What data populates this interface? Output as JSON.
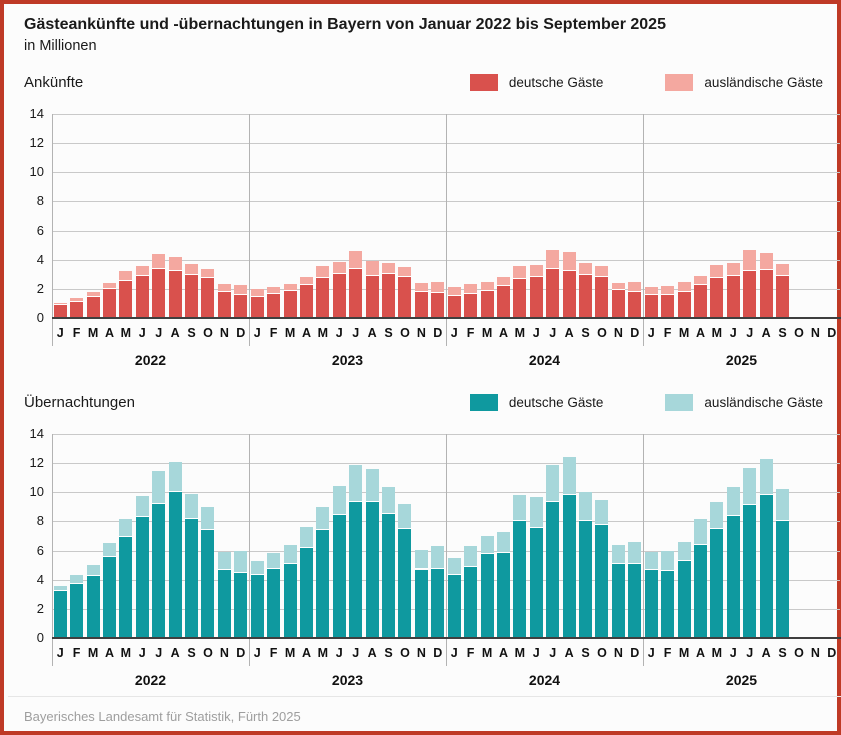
{
  "header": {
    "title": "Gästeankünfte und -übernachtungen in Bayern von Januar 2022 bis September 2025",
    "subtitle": "in Millionen"
  },
  "source": "Bayerisches Landesamt für Statistik, Fürth 2025",
  "frame": {
    "border_color": "#bf3a26",
    "background": "#fcfcfc"
  },
  "chart_data": [
    {
      "type": "bar",
      "stacked": true,
      "title": "Ankünfte",
      "unit": "Millionen",
      "ylim": [
        0,
        14
      ],
      "yticks": [
        0,
        2,
        4,
        6,
        8,
        10,
        12,
        14
      ],
      "grid": true,
      "legend_position": "top-right",
      "month_letters": [
        "J",
        "F",
        "M",
        "A",
        "M",
        "J",
        "J",
        "A",
        "S",
        "O",
        "N",
        "D"
      ],
      "years": [
        "2022",
        "2023",
        "2024",
        "2025"
      ],
      "legend": [
        {
          "label": "deutsche Gäste",
          "color": "#d9514d"
        },
        {
          "label": "ausländische Gäste",
          "color": "#f4a8a0"
        }
      ],
      "series": [
        {
          "name": "deutsche Gäste",
          "color": "#d9514d",
          "values": [
            0.9,
            1.1,
            1.45,
            2.0,
            2.55,
            2.85,
            3.35,
            3.2,
            2.95,
            2.75,
            1.8,
            1.6,
            1.45,
            1.65,
            1.85,
            2.25,
            2.75,
            3.0,
            3.35,
            2.9,
            3.05,
            2.8,
            1.8,
            1.7,
            1.5,
            1.65,
            1.85,
            2.2,
            2.7,
            2.8,
            3.35,
            3.25,
            2.95,
            2.8,
            1.9,
            1.8,
            1.6,
            1.6,
            1.8,
            2.25,
            2.75,
            2.9,
            3.25,
            3.3,
            2.9,
            null,
            null,
            null
          ]
        },
        {
          "name": "ausländische Gäste",
          "color": "#f4a8a0",
          "values": [
            0.1,
            0.25,
            0.35,
            0.4,
            0.65,
            0.7,
            1.05,
            1.0,
            0.75,
            0.6,
            0.5,
            0.65,
            0.55,
            0.5,
            0.5,
            0.55,
            0.8,
            0.85,
            1.25,
            1.0,
            0.75,
            0.7,
            0.6,
            0.75,
            0.6,
            0.65,
            0.65,
            0.6,
            0.85,
            0.85,
            1.35,
            1.3,
            0.8,
            0.8,
            0.5,
            0.7,
            0.5,
            0.6,
            0.7,
            0.65,
            0.9,
            0.9,
            1.4,
            1.15,
            0.8,
            null,
            null,
            null
          ]
        }
      ]
    },
    {
      "type": "bar",
      "stacked": true,
      "title": "Übernachtungen",
      "unit": "Millionen",
      "ylim": [
        0,
        14
      ],
      "yticks": [
        0,
        2,
        4,
        6,
        8,
        10,
        12,
        14
      ],
      "grid": true,
      "legend_position": "top-right",
      "month_letters": [
        "J",
        "F",
        "M",
        "A",
        "M",
        "J",
        "J",
        "A",
        "S",
        "O",
        "N",
        "D"
      ],
      "years": [
        "2022",
        "2023",
        "2024",
        "2025"
      ],
      "legend": [
        {
          "label": "deutsche Gäste",
          "color": "#0f999f"
        },
        {
          "label": "ausländische Gäste",
          "color": "#a7d7da"
        }
      ],
      "series": [
        {
          "name": "deutsche Gäste",
          "color": "#0f999f",
          "values": [
            3.2,
            3.7,
            4.25,
            5.55,
            6.9,
            8.3,
            9.2,
            10.0,
            8.15,
            7.4,
            4.65,
            4.45,
            4.3,
            4.75,
            5.1,
            6.15,
            7.4,
            8.45,
            9.3,
            9.35,
            8.5,
            7.45,
            4.7,
            4.75,
            4.3,
            4.9,
            5.75,
            5.8,
            8.0,
            7.55,
            9.3,
            9.8,
            8.0,
            7.75,
            5.05,
            5.1,
            4.7,
            4.6,
            5.3,
            6.4,
            7.5,
            8.35,
            9.1,
            9.8,
            8.05,
            null,
            null,
            null
          ]
        },
        {
          "name": "ausländische Gäste",
          "color": "#a7d7da",
          "values": [
            0.4,
            0.65,
            0.75,
            0.95,
            1.3,
            1.45,
            2.25,
            2.1,
            1.75,
            1.6,
            1.25,
            1.55,
            1.0,
            1.05,
            1.25,
            1.5,
            1.6,
            2.0,
            2.6,
            2.25,
            1.85,
            1.75,
            1.35,
            1.55,
            1.2,
            1.4,
            1.25,
            1.5,
            1.8,
            2.1,
            2.6,
            2.65,
            2.0,
            1.75,
            1.3,
            1.5,
            1.2,
            1.4,
            1.3,
            1.8,
            1.8,
            2.0,
            2.6,
            2.5,
            2.15,
            null,
            null,
            null
          ]
        }
      ]
    }
  ]
}
